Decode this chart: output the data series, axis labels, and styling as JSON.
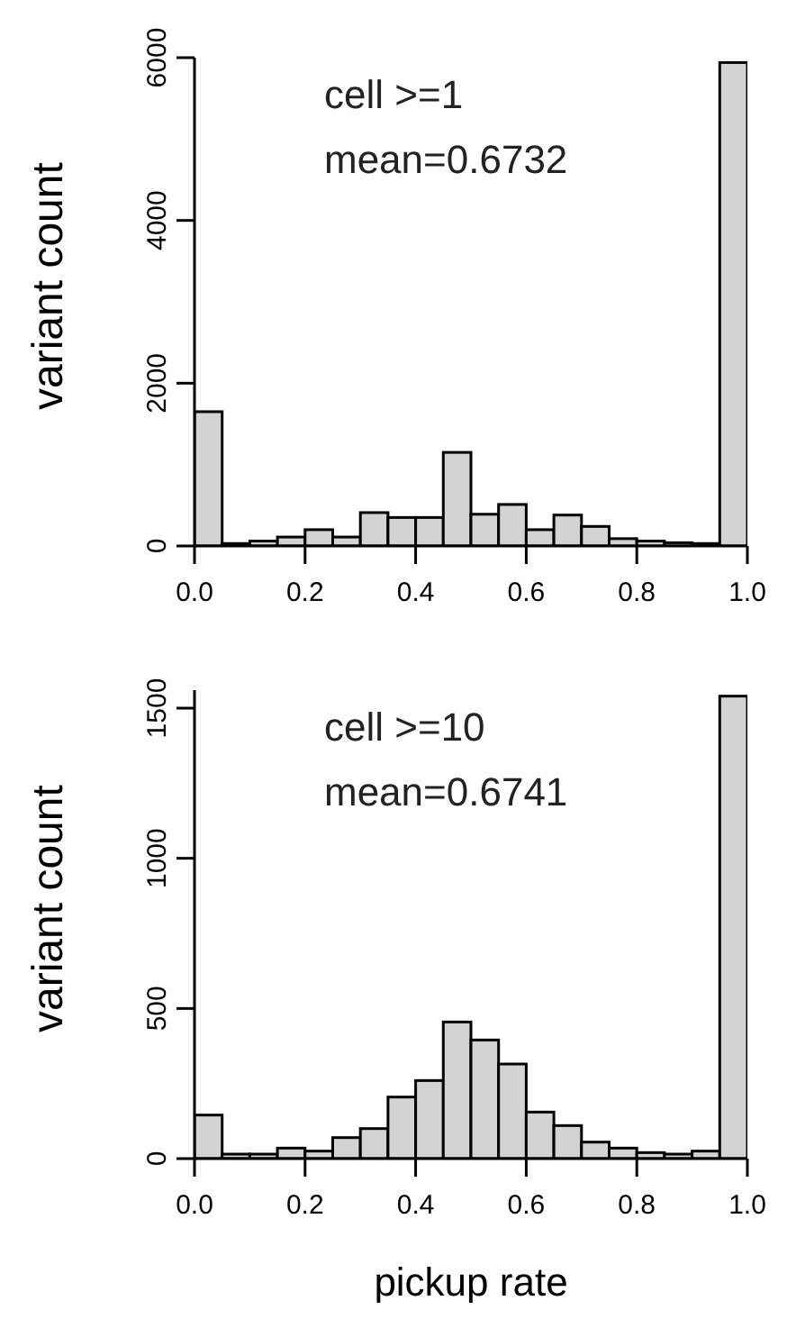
{
  "chart_data": [
    {
      "type": "histogram",
      "ylabel": "variant count",
      "annotations": [
        "cell >=1",
        "mean=0.6732"
      ],
      "color": "#d3d3d3",
      "grid": false,
      "bins": [
        0,
        0.05,
        0.1,
        0.15,
        0.2,
        0.25,
        0.3,
        0.35,
        0.4,
        0.45,
        0.5,
        0.55,
        0.6,
        0.65,
        0.7,
        0.75,
        0.8,
        0.85,
        0.9,
        0.95,
        1
      ],
      "values": [
        1650,
        30,
        60,
        110,
        200,
        110,
        410,
        350,
        350,
        1150,
        390,
        510,
        200,
        380,
        240,
        90,
        60,
        40,
        30,
        5940
      ],
      "xlim": [
        0,
        1
      ],
      "xticks": [
        {
          "value": 0,
          "label": "0.0"
        },
        {
          "value": 0.2,
          "label": "0.2"
        },
        {
          "value": 0.4,
          "label": "0.4"
        },
        {
          "value": 0.6,
          "label": "0.6"
        },
        {
          "value": 0.8,
          "label": "0.8"
        },
        {
          "value": 1,
          "label": "1.0"
        }
      ],
      "ylim": [
        0,
        6000
      ],
      "yticks": [
        0,
        2000,
        4000,
        6000
      ]
    },
    {
      "type": "histogram",
      "xlabel": "pickup rate",
      "ylabel": "variant count",
      "annotations": [
        "cell >=10",
        "mean=0.6741"
      ],
      "color": "#d3d3d3",
      "grid": false,
      "bins": [
        0,
        0.05,
        0.1,
        0.15,
        0.2,
        0.25,
        0.3,
        0.35,
        0.4,
        0.45,
        0.5,
        0.55,
        0.6,
        0.65,
        0.7,
        0.75,
        0.8,
        0.85,
        0.9,
        0.95,
        1
      ],
      "values": [
        145,
        15,
        15,
        35,
        25,
        70,
        100,
        205,
        260,
        455,
        395,
        315,
        155,
        110,
        55,
        35,
        20,
        15,
        25,
        1540
      ],
      "xlim": [
        0,
        1
      ],
      "xticks": [
        {
          "value": 0,
          "label": "0.0"
        },
        {
          "value": 0.2,
          "label": "0.2"
        },
        {
          "value": 0.4,
          "label": "0.4"
        },
        {
          "value": 0.6,
          "label": "0.6"
        },
        {
          "value": 0.8,
          "label": "0.8"
        },
        {
          "value": 1,
          "label": "1.0"
        }
      ],
      "ylim": [
        0,
        1560
      ],
      "yticks": [
        0,
        500,
        1000,
        1500
      ]
    }
  ]
}
